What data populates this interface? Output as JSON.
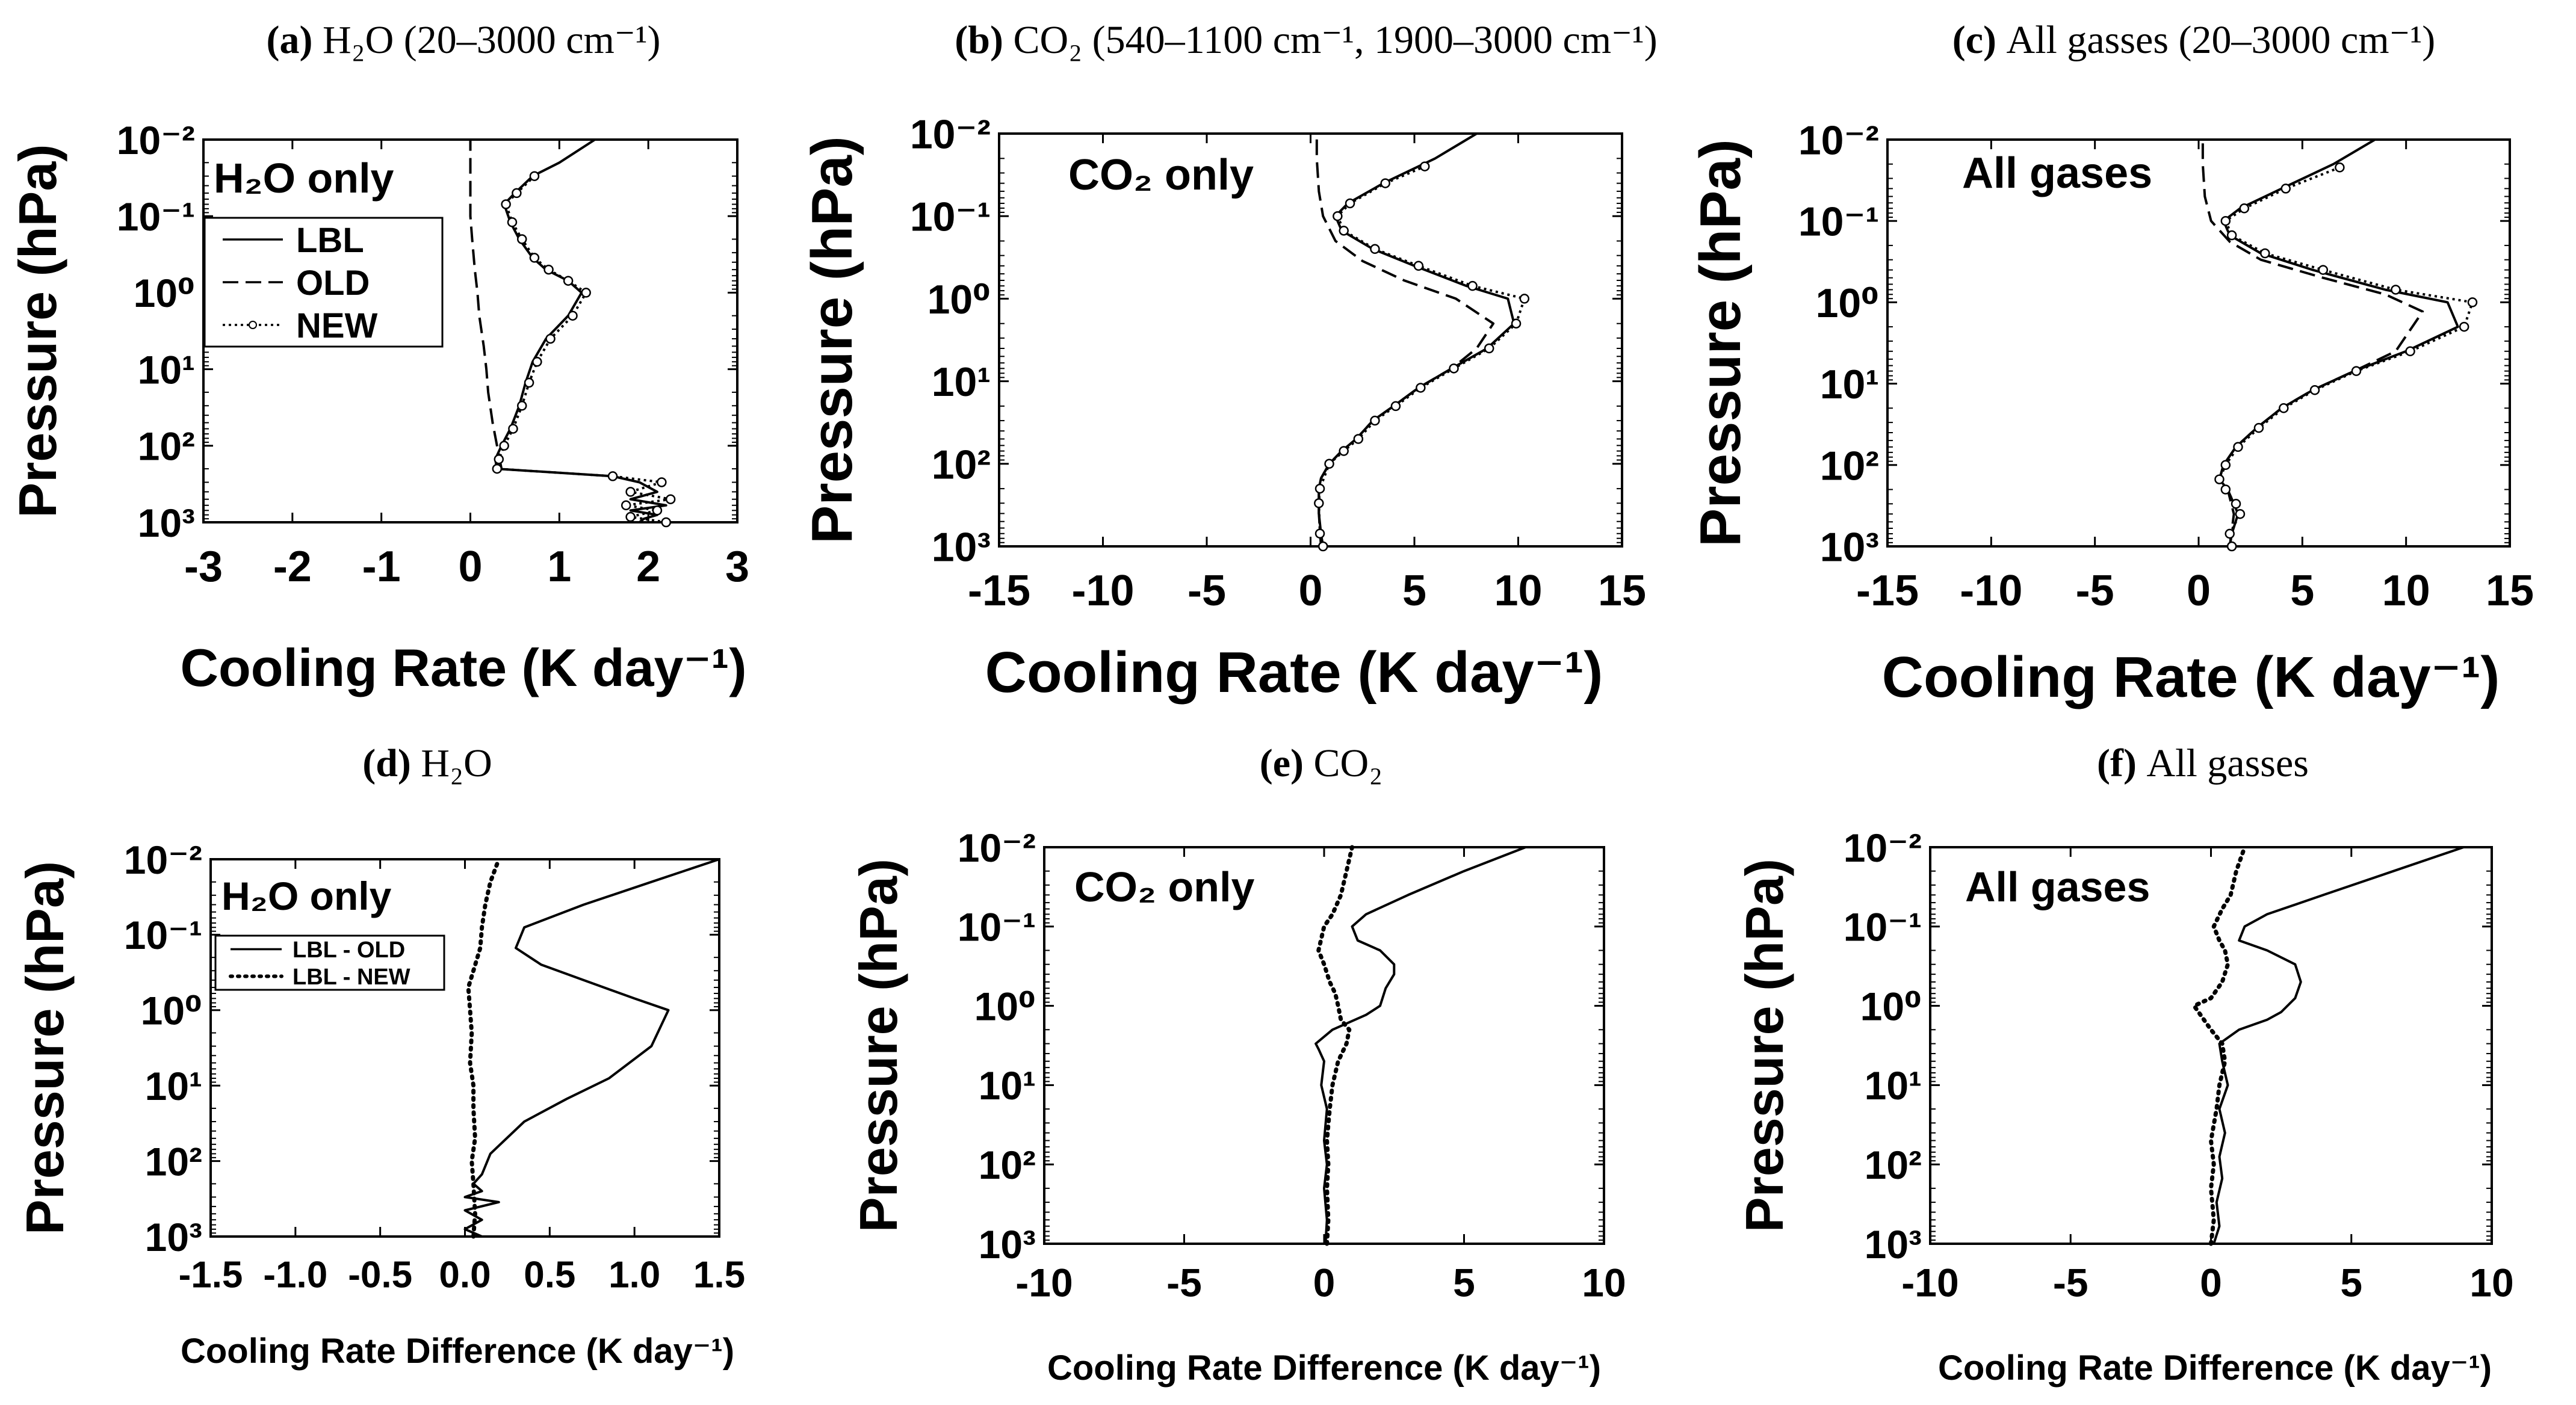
{
  "figure": {
    "colors": {
      "ink": "#000000",
      "background": "#ffffff",
      "marker_fill": "#ffffff"
    }
  },
  "chart_data": [
    {
      "id": "a",
      "type": "line",
      "letter": "(a)",
      "title": "H₂O (20–3000 cm⁻¹)",
      "xlabel": "Cooling Rate (K day⁻¹)",
      "ylabel": "Pressure (hPa)",
      "xlim": [
        -3,
        3
      ],
      "xticks": [
        "-3",
        "-2",
        "-1",
        "0",
        "1",
        "2",
        "3"
      ],
      "yscale": "log",
      "ylim": [
        1000,
        0.01
      ],
      "yticks": [
        "10⁻²",
        "10⁻¹",
        "10⁰",
        "10¹",
        "10²",
        "10³"
      ],
      "annotation": "H₂O only",
      "legend_position": "left",
      "legend": [
        "LBL",
        "OLD",
        "NEW"
      ],
      "series": [
        {
          "name": "LBL",
          "style": "solid",
          "x": [
            1.9,
            1.95,
            2.1,
            1.8,
            2.2,
            1.8,
            2.1,
            1.9,
            1.6,
            0.3,
            0.28,
            0.35,
            0.45,
            0.55,
            0.62,
            0.7,
            0.85,
            1.1,
            1.25,
            1.1,
            0.85,
            0.7,
            0.55,
            0.45,
            0.38,
            0.5,
            0.7,
            1.0,
            1.4
          ],
          "y": [
            1000,
            900,
            800,
            700,
            600,
            500,
            400,
            300,
            250,
            200,
            150,
            100,
            60,
            30,
            15,
            8,
            4,
            2,
            1,
            0.7,
            0.5,
            0.35,
            0.2,
            0.12,
            0.07,
            0.05,
            0.03,
            0.02,
            0.01
          ]
        },
        {
          "name": "OLD",
          "style": "dashed",
          "x": [
            0.35,
            0.3,
            0.25,
            0.2,
            0.18,
            0.15,
            0.1,
            0.08,
            0.05,
            0.02,
            0,
            0,
            0,
            0
          ],
          "y": [
            200,
            100,
            50,
            20,
            10,
            5,
            2,
            1,
            0.5,
            0.2,
            0.1,
            0.05,
            0.02,
            0.01
          ]
        },
        {
          "name": "NEW",
          "style": "dotted-markers",
          "x": [
            2.2,
            1.8,
            2.1,
            1.75,
            2.25,
            1.8,
            2.15,
            1.6,
            0.3,
            0.32,
            0.38,
            0.48,
            0.58,
            0.66,
            0.75,
            0.9,
            1.15,
            1.3,
            1.1,
            0.88,
            0.72,
            0.58,
            0.47,
            0.4,
            0.52,
            0.72
          ],
          "y": [
            1000,
            850,
            700,
            600,
            500,
            400,
            300,
            250,
            200,
            150,
            100,
            60,
            30,
            15,
            8,
            4,
            2,
            1,
            0.7,
            0.5,
            0.35,
            0.2,
            0.12,
            0.07,
            0.05,
            0.03
          ]
        }
      ]
    },
    {
      "id": "b",
      "type": "line",
      "letter": "(b)",
      "title": "CO₂ (540–1100 cm⁻¹, 1900–3000 cm⁻¹)",
      "xlabel": "Cooling Rate (K day⁻¹)",
      "ylabel": "Pressure (hPa)",
      "xlim": [
        -15,
        15
      ],
      "xticks": [
        "-15",
        "-10",
        "-5",
        "0",
        "5",
        "10",
        "15"
      ],
      "yscale": "log",
      "ylim": [
        1000,
        0.01
      ],
      "yticks": [
        "10⁻²",
        "10⁻¹",
        "10⁰",
        "10¹",
        "10²",
        "10³"
      ],
      "annotation": "CO₂ only",
      "series": [
        {
          "name": "LBL",
          "style": "solid",
          "x": [
            0.6,
            0.5,
            0.4,
            0.4,
            0.5,
            0.9,
            1.5,
            2.2,
            3.0,
            4.0,
            5.2,
            6.8,
            8.5,
            9.8,
            9.5,
            7.5,
            5.0,
            3.0,
            1.5,
            1.2,
            1.8,
            3.5,
            6.0,
            8.0
          ],
          "y": [
            1000,
            700,
            400,
            200,
            150,
            100,
            70,
            50,
            30,
            20,
            12,
            7,
            4,
            2,
            1,
            0.7,
            0.4,
            0.25,
            0.15,
            0.1,
            0.07,
            0.04,
            0.02,
            0.01
          ]
        },
        {
          "name": "OLD",
          "style": "dashed",
          "x": [
            0.5,
            0.4,
            0.4,
            0.5,
            0.9,
            1.5,
            2.2,
            3.0,
            4.0,
            5.2,
            6.8,
            8.0,
            8.8,
            7.0,
            4.5,
            2.5,
            1.2,
            0.6,
            0.4,
            0.3,
            0.3
          ],
          "y": [
            1000,
            400,
            200,
            150,
            100,
            70,
            50,
            30,
            20,
            12,
            7,
            4,
            2,
            1,
            0.6,
            0.35,
            0.2,
            0.1,
            0.05,
            0.02,
            0.01
          ]
        },
        {
          "name": "NEW",
          "style": "dotted-markers",
          "x": [
            0.6,
            0.45,
            0.4,
            0.45,
            0.9,
            1.6,
            2.3,
            3.1,
            4.1,
            5.3,
            6.9,
            8.6,
            9.9,
            10.3,
            7.8,
            5.2,
            3.1,
            1.6,
            1.3,
            1.9,
            3.6,
            5.5
          ],
          "y": [
            1000,
            700,
            300,
            200,
            100,
            70,
            50,
            30,
            20,
            12,
            7,
            4,
            2,
            1,
            0.7,
            0.4,
            0.25,
            0.15,
            0.1,
            0.07,
            0.04,
            0.025
          ]
        }
      ]
    },
    {
      "id": "c",
      "type": "line",
      "letter": "(c)",
      "title": "All gasses (20–3000 cm⁻¹)",
      "xlabel": "Cooling Rate (K day⁻¹)",
      "ylabel": "Pressure (hPa)",
      "xlim": [
        -15,
        15
      ],
      "xticks": [
        "-15",
        "-10",
        "-5",
        "0",
        "5",
        "10",
        "15"
      ],
      "yscale": "log",
      "ylim": [
        1000,
        0.01
      ],
      "yticks": [
        "10⁻²",
        "10⁻¹",
        "10⁰",
        "10¹",
        "10²",
        "10³"
      ],
      "annotation": "All gases",
      "series": [
        {
          "name": "LBL",
          "style": "solid",
          "x": [
            1.5,
            1.6,
            1.9,
            1.7,
            1.4,
            1.0,
            1.2,
            1.8,
            2.8,
            4.0,
            5.5,
            7.5,
            10.0,
            12.5,
            12.0,
            9.0,
            5.5,
            3.0,
            1.5,
            1.2,
            2.0,
            4.0,
            6.5,
            8.5
          ],
          "y": [
            1000,
            700,
            400,
            300,
            200,
            150,
            100,
            60,
            35,
            20,
            12,
            7,
            4,
            2,
            1,
            0.7,
            0.4,
            0.25,
            0.15,
            0.1,
            0.07,
            0.04,
            0.02,
            0.01
          ]
        },
        {
          "name": "OLD",
          "style": "dashed",
          "x": [
            1.5,
            1.7,
            1.4,
            1.0,
            1.2,
            1.8,
            2.8,
            4.0,
            5.5,
            7.5,
            9.5,
            10.8,
            9.0,
            6.0,
            3.0,
            1.5,
            0.6,
            0.3,
            0.2,
            0.2
          ],
          "y": [
            1000,
            400,
            200,
            150,
            100,
            60,
            35,
            20,
            12,
            7,
            4,
            1.3,
            0.8,
            0.5,
            0.3,
            0.18,
            0.1,
            0.05,
            0.02,
            0.01
          ]
        },
        {
          "name": "NEW",
          "style": "dotted-markers",
          "x": [
            1.6,
            1.5,
            2.0,
            1.8,
            1.3,
            1.0,
            1.3,
            1.9,
            2.9,
            4.1,
            5.6,
            7.6,
            10.2,
            12.8,
            13.2,
            9.5,
            6.0,
            3.2,
            1.6,
            1.3,
            2.2,
            4.2,
            6.8
          ],
          "y": [
            1000,
            700,
            400,
            300,
            200,
            150,
            100,
            60,
            35,
            20,
            12,
            7,
            4,
            2,
            1,
            0.7,
            0.4,
            0.25,
            0.15,
            0.1,
            0.07,
            0.04,
            0.022
          ]
        }
      ]
    },
    {
      "id": "d",
      "type": "line",
      "letter": "(d)",
      "title": "H₂O",
      "xlabel": "Cooling Rate Difference (K day⁻¹)",
      "ylabel": "Pressure (hPa)",
      "xlim": [
        -1.5,
        1.5
      ],
      "xticks": [
        "-1.5",
        "-1.0",
        "-0.5",
        "0.0",
        "0.5",
        "1.0",
        "1.5"
      ],
      "yscale": "log",
      "ylim": [
        1000,
        0.01
      ],
      "yticks": [
        "10⁻²",
        "10⁻¹",
        "10⁰",
        "10¹",
        "10²",
        "10³"
      ],
      "annotation": "H₂O only",
      "legend_position": "left",
      "legend": [
        "LBL - OLD",
        "LBL - NEW"
      ],
      "series": [
        {
          "name": "LBL - OLD",
          "style": "solid",
          "x": [
            0.1,
            0.0,
            0.1,
            0.0,
            0.2,
            0.0,
            0.1,
            0.05,
            0.1,
            0.15,
            0.35,
            0.6,
            0.85,
            1.1,
            1.2,
            1.0,
            0.7,
            0.45,
            0.3,
            0.35,
            0.7,
            1.1,
            1.5
          ],
          "y": [
            1000,
            800,
            600,
            450,
            350,
            300,
            250,
            200,
            150,
            80,
            30,
            15,
            8,
            3,
            1,
            0.7,
            0.4,
            0.25,
            0.15,
            0.08,
            0.04,
            0.02,
            0.01
          ]
        },
        {
          "name": "LBL - NEW",
          "style": "dotted",
          "x": [
            0.05,
            0.06,
            0.05,
            0.04,
            0.06,
            0.05,
            0.05,
            0.03,
            0.04,
            0.03,
            0.02,
            0.05,
            0.09,
            0.1,
            0.12,
            0.15,
            0.2
          ],
          "y": [
            1000,
            500,
            200,
            100,
            50,
            20,
            10,
            5,
            2,
            1,
            0.5,
            0.3,
            0.15,
            0.08,
            0.04,
            0.02,
            0.01
          ]
        }
      ]
    },
    {
      "id": "e",
      "type": "line",
      "letter": "(e)",
      "title": "CO₂",
      "xlabel": "Cooling Rate Difference (K day⁻¹)",
      "ylabel": "Pressure (hPa)",
      "xlim": [
        -10,
        10
      ],
      "xticks": [
        "-10",
        "-5",
        "0",
        "5",
        "10"
      ],
      "yscale": "log",
      "ylim": [
        1000,
        0.01
      ],
      "yticks": [
        "10⁻²",
        "10⁻¹",
        "10⁰",
        "10¹",
        "10²",
        "10³"
      ],
      "annotation": "CO₂ only",
      "series": [
        {
          "name": "LBL - OLD",
          "style": "solid",
          "x": [
            0.05,
            0.1,
            0.0,
            0.1,
            0.0,
            0.1,
            -0.1,
            0.0,
            -0.2,
            -0.3,
            0.3,
            1.5,
            2.0,
            2.2,
            2.5,
            2.5,
            2.0,
            1.2,
            1.0,
            1.5,
            3.0,
            5.0,
            7.2
          ],
          "y": [
            1000,
            500,
            200,
            100,
            50,
            20,
            10,
            5,
            3.5,
            3,
            2,
            1.3,
            1,
            0.6,
            0.4,
            0.3,
            0.2,
            0.15,
            0.1,
            0.07,
            0.04,
            0.02,
            0.01
          ]
        },
        {
          "name": "LBL - NEW",
          "style": "dotted",
          "x": [
            0.1,
            0.15,
            0.1,
            0.15,
            0.1,
            0.2,
            0.3,
            0.5,
            0.8,
            0.9,
            0.6,
            0.5,
            0.4,
            0.2,
            0.0,
            -0.2,
            0.0,
            0.3,
            0.6,
            0.8,
            1.0
          ],
          "y": [
            1000,
            500,
            200,
            100,
            50,
            20,
            10,
            5,
            3,
            2,
            1.5,
            1,
            0.7,
            0.5,
            0.3,
            0.2,
            0.1,
            0.07,
            0.04,
            0.02,
            0.01
          ]
        }
      ]
    },
    {
      "id": "f",
      "type": "line",
      "letter": "(f)",
      "title": "All gasses",
      "xlabel": "Cooling Rate Difference (K day⁻¹)",
      "ylabel": "Pressure (hPa)",
      "xlim": [
        -10,
        10
      ],
      "xticks": [
        "-10",
        "-5",
        "0",
        "5",
        "10"
      ],
      "yscale": "log",
      "ylim": [
        1000,
        0.01
      ],
      "yticks": [
        "10⁻²",
        "10⁻¹",
        "10⁰",
        "10¹",
        "10²",
        "10³"
      ],
      "annotation": "All gases",
      "series": [
        {
          "name": "LBL - OLD",
          "style": "solid",
          "x": [
            0.1,
            0.3,
            0.2,
            0.4,
            0.3,
            0.5,
            0.3,
            0.6,
            0.4,
            0.3,
            1.0,
            2.0,
            2.5,
            3.0,
            3.2,
            3.0,
            2.0,
            1.0,
            1.2,
            2.0,
            4.0,
            6.5,
            9.0
          ],
          "y": [
            1000,
            600,
            300,
            150,
            80,
            40,
            20,
            10,
            5,
            3,
            2,
            1.5,
            1.2,
            0.8,
            0.5,
            0.3,
            0.2,
            0.15,
            0.1,
            0.07,
            0.04,
            0.02,
            0.01
          ]
        },
        {
          "name": "LBL - NEW",
          "style": "dotted",
          "x": [
            0.0,
            0.1,
            0.0,
            0.1,
            0.0,
            0.2,
            0.3,
            0.5,
            0.4,
            0.0,
            -0.6,
            0.0,
            0.4,
            0.6,
            0.5,
            0.3,
            0.1,
            0.4,
            0.7,
            0.9,
            1.2
          ],
          "y": [
            1000,
            500,
            200,
            100,
            50,
            20,
            10,
            5,
            3,
            2,
            1,
            0.8,
            0.5,
            0.3,
            0.2,
            0.15,
            0.1,
            0.06,
            0.04,
            0.02,
            0.01
          ]
        }
      ]
    }
  ]
}
